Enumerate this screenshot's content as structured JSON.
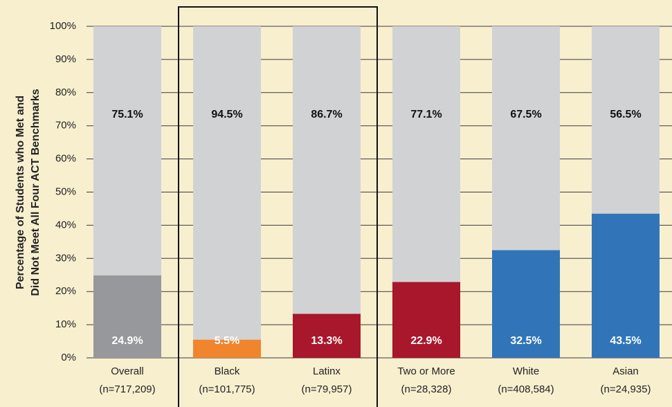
{
  "chart_data": {
    "type": "stacked_bar",
    "ylabel": [
      "Percentage of Students who Met and",
      "Did Not Meet All Four ACT Benchmarks"
    ],
    "categories": [
      "Overall",
      "Black",
      "Latinx",
      "Two or More",
      "White",
      "Asian"
    ],
    "category_counts": [
      "(n=717,209)",
      "(n=101,775)",
      "(n=79,957)",
      "(n=28,328)",
      "(n=408,584)",
      "(n=24,935)"
    ],
    "series": [
      {
        "colors": [
          "#97989b",
          "#f0852d",
          "#a8172b",
          "#a8172b",
          "#3175b8",
          "#3175b8"
        ],
        "values": [
          24.9,
          5.5,
          13.3,
          22.9,
          32.5,
          43.5
        ],
        "value_labels": [
          "24.9%",
          "5.5%",
          "13.3%",
          "22.9%",
          "32.5%",
          "43.5%"
        ]
      },
      {
        "color": "#d1d2d4",
        "values": [
          75.1,
          94.5,
          86.7,
          77.1,
          67.5,
          56.5
        ],
        "value_labels": [
          "75.1%",
          "94.5%",
          "86.7%",
          "77.1%",
          "67.5%",
          "56.5%"
        ]
      }
    ],
    "ylim": [
      0,
      100
    ],
    "yticks": [
      {
        "value": 0,
        "label": "0%"
      },
      {
        "value": 10,
        "label": "10%"
      },
      {
        "value": 20,
        "label": "20%"
      },
      {
        "value": 30,
        "label": "30%"
      },
      {
        "value": 40,
        "label": "40%"
      },
      {
        "value": 50,
        "label": "50%"
      },
      {
        "value": 60,
        "label": "60%"
      },
      {
        "value": 70,
        "label": "70%"
      },
      {
        "value": 80,
        "label": "80%"
      },
      {
        "value": 90,
        "label": "90%"
      },
      {
        "value": 100,
        "label": "100%"
      }
    ],
    "grid": true
  }
}
